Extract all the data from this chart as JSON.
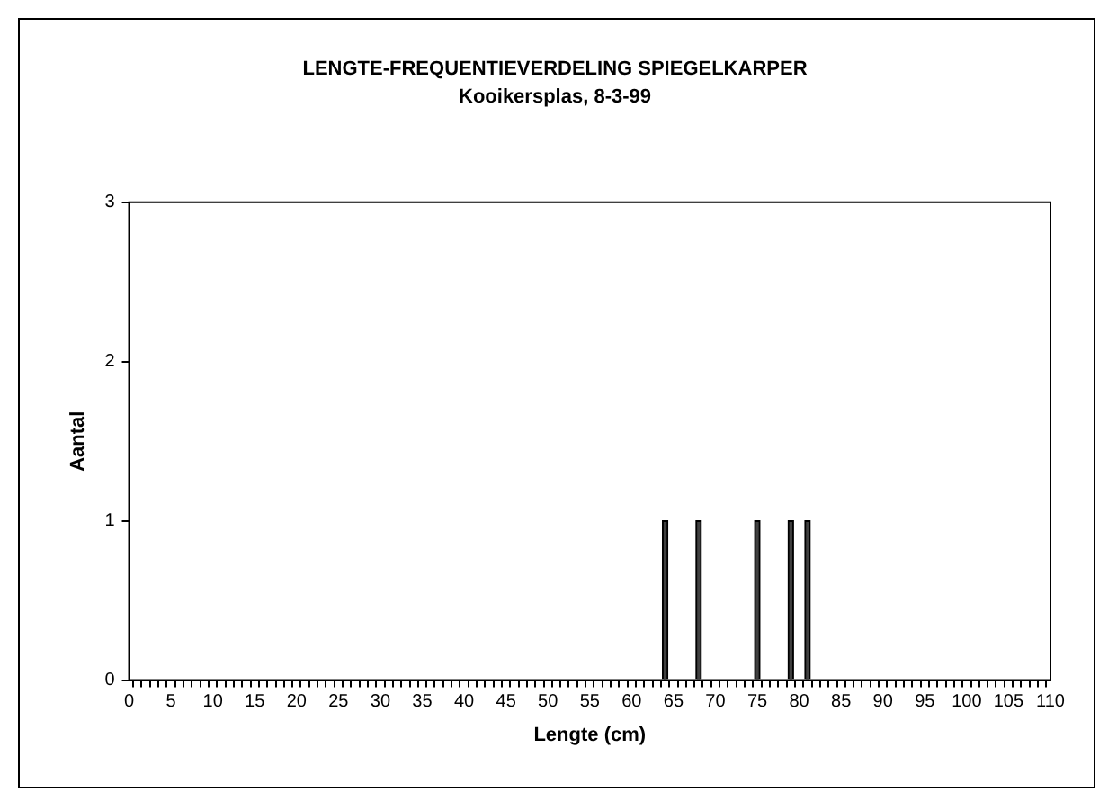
{
  "chart_data": {
    "type": "bar",
    "title": "LENGTE-FREQUENTIEVERDELING SPIEGELKARPER",
    "subtitle": "Kooikersplas, 8-3-99",
    "xlabel": "Lengte (cm)",
    "ylabel": "Aantal",
    "x": [
      64,
      68,
      75,
      79,
      81
    ],
    "values": [
      1,
      1,
      1,
      1,
      1
    ],
    "color": "#404040",
    "xlim": [
      0,
      110
    ],
    "xticks": [
      0,
      {
        "value": 1,
        "label": null
      },
      {
        "value": 2,
        "label": null
      },
      {
        "value": 3,
        "label": null
      },
      {
        "value": 4,
        "label": null
      },
      5,
      {
        "value": 6,
        "label": null
      },
      {
        "value": 7,
        "label": null
      },
      {
        "value": 8,
        "label": null
      },
      {
        "value": 9,
        "label": null
      },
      10,
      {
        "value": 11,
        "label": null
      },
      {
        "value": 12,
        "label": null
      },
      {
        "value": 13,
        "label": null
      },
      {
        "value": 14,
        "label": null
      },
      15,
      {
        "value": 16,
        "label": null
      },
      {
        "value": 17,
        "label": null
      },
      {
        "value": 18,
        "label": null
      },
      {
        "value": 19,
        "label": null
      },
      20,
      {
        "value": 21,
        "label": null
      },
      {
        "value": 22,
        "label": null
      },
      {
        "value": 23,
        "label": null
      },
      {
        "value": 24,
        "label": null
      },
      25,
      {
        "value": 26,
        "label": null
      },
      {
        "value": 27,
        "label": null
      },
      {
        "value": 28,
        "label": null
      },
      {
        "value": 29,
        "label": null
      },
      30,
      {
        "value": 31,
        "label": null
      },
      {
        "value": 32,
        "label": null
      },
      {
        "value": 33,
        "label": null
      },
      {
        "value": 34,
        "label": null
      },
      35,
      {
        "value": 36,
        "label": null
      },
      {
        "value": 37,
        "label": null
      },
      {
        "value": 38,
        "label": null
      },
      {
        "value": 39,
        "label": null
      },
      40,
      {
        "value": 41,
        "label": null
      },
      {
        "value": 42,
        "label": null
      },
      {
        "value": 43,
        "label": null
      },
      {
        "value": 44,
        "label": null
      },
      45,
      {
        "value": 46,
        "label": null
      },
      {
        "value": 47,
        "label": null
      },
      {
        "value": 48,
        "label": null
      },
      {
        "value": 49,
        "label": null
      },
      50,
      {
        "value": 51,
        "label": null
      },
      {
        "value": 52,
        "label": null
      },
      {
        "value": 53,
        "label": null
      },
      {
        "value": 54,
        "label": null
      },
      55,
      {
        "value": 56,
        "label": null
      },
      {
        "value": 57,
        "label": null
      },
      {
        "value": 58,
        "label": null
      },
      {
        "value": 59,
        "label": null
      },
      60,
      {
        "value": 61,
        "label": null
      },
      {
        "value": 62,
        "label": null
      },
      {
        "value": 63,
        "label": null
      },
      {
        "value": 64,
        "label": null
      },
      65,
      {
        "value": 66,
        "label": null
      },
      {
        "value": 67,
        "label": null
      },
      {
        "value": 68,
        "label": null
      },
      {
        "value": 69,
        "label": null
      },
      70,
      {
        "value": 71,
        "label": null
      },
      {
        "value": 72,
        "label": null
      },
      {
        "value": 73,
        "label": null
      },
      {
        "value": 74,
        "label": null
      },
      75,
      {
        "value": 76,
        "label": null
      },
      {
        "value": 77,
        "label": null
      },
      {
        "value": 78,
        "label": null
      },
      {
        "value": 79,
        "label": null
      },
      80,
      {
        "value": 81,
        "label": null
      },
      {
        "value": 82,
        "label": null
      },
      {
        "value": 83,
        "label": null
      },
      {
        "value": 84,
        "label": null
      },
      85,
      {
        "value": 86,
        "label": null
      },
      {
        "value": 87,
        "label": null
      },
      {
        "value": 88,
        "label": null
      },
      {
        "value": 89,
        "label": null
      },
      90,
      {
        "value": 91,
        "label": null
      },
      {
        "value": 92,
        "label": null
      },
      {
        "value": 93,
        "label": null
      },
      {
        "value": 94,
        "label": null
      },
      95,
      {
        "value": 96,
        "label": null
      },
      {
        "value": 97,
        "label": null
      },
      {
        "value": 98,
        "label": null
      },
      {
        "value": 99,
        "label": null
      },
      100,
      {
        "value": 101,
        "label": null
      },
      {
        "value": 102,
        "label": null
      },
      {
        "value": 103,
        "label": null
      },
      {
        "value": 104,
        "label": null
      },
      105,
      {
        "value": 106,
        "label": null
      },
      {
        "value": 107,
        "label": null
      },
      {
        "value": 108,
        "label": null
      },
      {
        "value": 109,
        "label": null
      },
      110
    ],
    "ylim": [
      0,
      3
    ],
    "yticks": [
      0,
      1,
      2,
      3
    ]
  }
}
